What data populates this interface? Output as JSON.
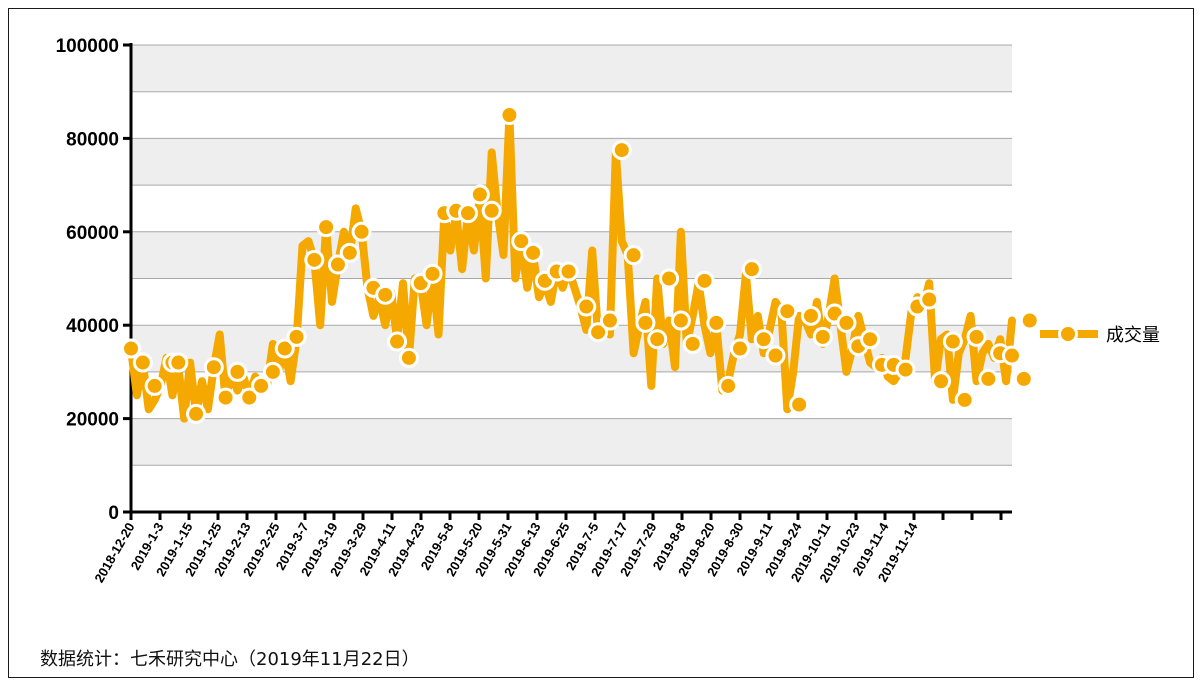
{
  "footer": "数据统计：七禾研究中心（2019年11月22日）",
  "chart_data": {
    "type": "line",
    "title": "",
    "xlabel": "",
    "ylabel": "",
    "ylim": [
      0,
      100000
    ],
    "y_ticks": [
      0,
      20000,
      40000,
      60000,
      80000,
      100000
    ],
    "grid": true,
    "legend_position": "right",
    "series_color": "#f5a800",
    "x_tick_labels": [
      "2018-12-20",
      "2019-1-3",
      "2019-1-15",
      "2019-1-25",
      "2019-2-13",
      "2019-2-25",
      "2019-3-7",
      "2019-3-19",
      "2019-3-29",
      "2019-4-11",
      "2019-4-23",
      "2019-5-8",
      "2019-5-20",
      "2019-5-31",
      "2019-6-13",
      "2019-6-25",
      "2019-7-5",
      "2019-7-17",
      "2019-7-29",
      "2019-8-8",
      "2019-8-20",
      "2019-8-30",
      "2019-9-11",
      "2019-9-24",
      "2019-10-11",
      "2019-10-23",
      "2019-11-4",
      "2019-11-14"
    ],
    "series": [
      {
        "name": "成交量",
        "values": [
          35000,
          25000,
          32000,
          22000,
          24000,
          27000,
          33000,
          25000,
          31000,
          20000,
          32000,
          21000,
          28000,
          22000,
          31000,
          38000,
          24000,
          30000,
          26000,
          29000,
          25000,
          29000,
          27000,
          27000,
          36000,
          30000,
          35000,
          28000,
          37000,
          57000,
          58000,
          54000,
          40000,
          61000,
          45000,
          53000,
          60000,
          55000,
          65000,
          60000,
          48000,
          42000,
          46000,
          40000,
          47000,
          37000,
          49000,
          33000,
          50000,
          49000,
          40000,
          51000,
          38000,
          64000,
          56000,
          64000,
          52000,
          64000,
          56000,
          68000,
          50000,
          77000,
          64000,
          55000,
          85000,
          50000,
          58000,
          48000,
          55000,
          46000,
          49000,
          45000,
          52000,
          48000,
          52000,
          48000,
          44000,
          39000,
          56000,
          38000,
          41000,
          38000,
          77000,
          58000,
          55000,
          34000,
          40000,
          45000,
          27000,
          50000,
          36000,
          41000,
          31000,
          60000,
          36000,
          42000,
          49000,
          40000,
          34000,
          40000,
          26000,
          28000,
          34000,
          38000,
          51000,
          37000,
          42000,
          34000,
          39000,
          45000,
          43000,
          22000,
          30000,
          42000,
          41000,
          38000,
          45000,
          36000,
          42000,
          50000,
          40000,
          30000,
          35000,
          42000,
          37000,
          32000,
          31000,
          33000,
          29000,
          28000,
          30000,
          33000,
          43000,
          46000,
          44000,
          49000,
          28000,
          37000,
          38000,
          24000,
          34000,
          37000,
          42000,
          28000,
          34000,
          36000,
          33000,
          37000,
          28000,
          41000
        ],
        "marker_points": [
          [
            0,
            35000
          ],
          [
            2,
            32000
          ],
          [
            4,
            27000
          ],
          [
            7,
            32000
          ],
          [
            8,
            32000
          ],
          [
            11,
            21000
          ],
          [
            14,
            31000
          ],
          [
            16,
            24500
          ],
          [
            18,
            30000
          ],
          [
            20,
            24500
          ],
          [
            22,
            27000
          ],
          [
            24,
            30000
          ],
          [
            26,
            35000
          ],
          [
            28,
            37500
          ],
          [
            31,
            54000
          ],
          [
            33,
            61000
          ],
          [
            35,
            53000
          ],
          [
            37,
            55500
          ],
          [
            39,
            60000
          ],
          [
            41,
            48000
          ],
          [
            43,
            46500
          ],
          [
            45,
            36500
          ],
          [
            47,
            33000
          ],
          [
            49,
            49000
          ],
          [
            51,
            51000
          ],
          [
            53,
            64000
          ],
          [
            55,
            64500
          ],
          [
            57,
            64000
          ],
          [
            59,
            68000
          ],
          [
            61,
            64500
          ],
          [
            64,
            85000
          ],
          [
            66,
            58000
          ],
          [
            68,
            55500
          ],
          [
            70,
            49500
          ],
          [
            72,
            51500
          ],
          [
            74,
            51500
          ],
          [
            77,
            44000
          ],
          [
            79,
            38500
          ],
          [
            81,
            41000
          ],
          [
            83,
            77500
          ],
          [
            85,
            55000
          ],
          [
            87,
            40500
          ],
          [
            89,
            37000
          ],
          [
            91,
            50000
          ],
          [
            93,
            41000
          ],
          [
            95,
            36000
          ],
          [
            97,
            49500
          ],
          [
            99,
            40500
          ],
          [
            101,
            27000
          ],
          [
            103,
            35000
          ],
          [
            105,
            52000
          ],
          [
            107,
            37000
          ],
          [
            109,
            33500
          ],
          [
            111,
            43000
          ],
          [
            113,
            23000
          ],
          [
            115,
            42000
          ],
          [
            117,
            37500
          ],
          [
            119,
            42500
          ],
          [
            121,
            40500
          ],
          [
            123,
            35500
          ],
          [
            125,
            37000
          ],
          [
            127,
            31500
          ],
          [
            129,
            31500
          ],
          [
            131,
            30500
          ],
          [
            133,
            44000
          ],
          [
            135,
            45500
          ],
          [
            137,
            28000
          ],
          [
            139,
            36500
          ],
          [
            141,
            24000
          ],
          [
            143,
            37500
          ],
          [
            145,
            28500
          ],
          [
            147,
            34000
          ],
          [
            149,
            33500
          ],
          [
            151,
            28500
          ],
          [
            152,
            41000
          ]
        ]
      }
    ]
  }
}
